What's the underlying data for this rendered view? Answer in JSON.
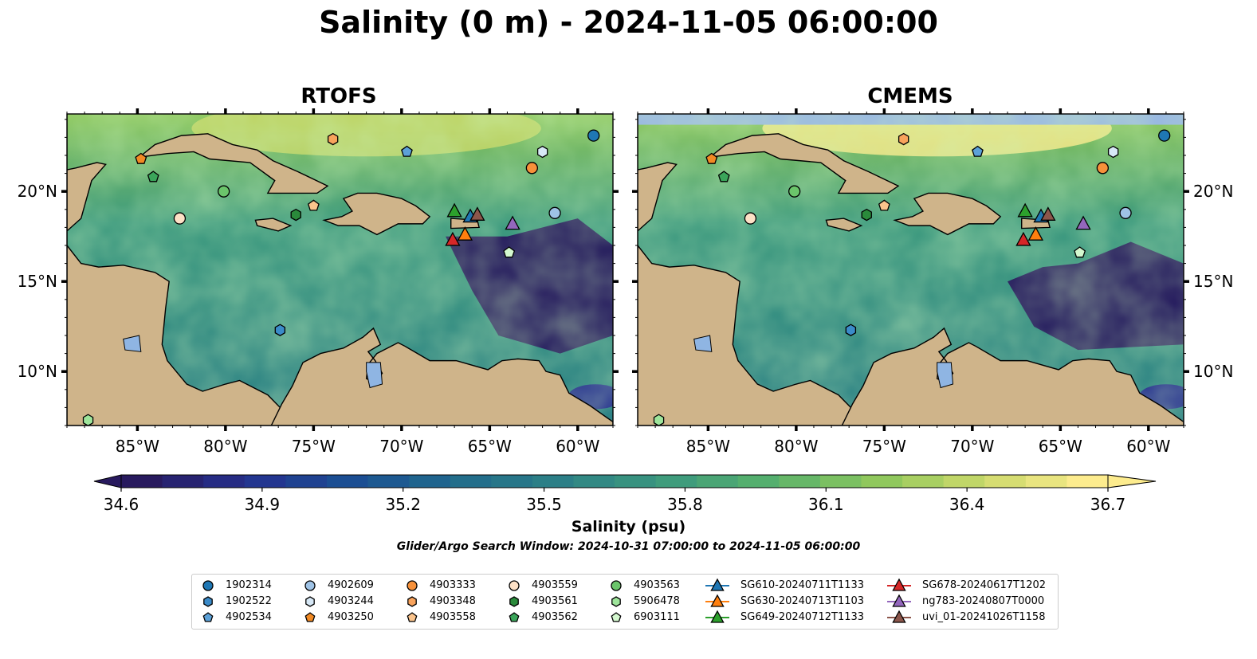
{
  "figure": {
    "title": "Salinity (0 m) - 2024-11-05 06:00:00",
    "caption": "Glider/Argo Search Window: 2024-10-31 07:00:00 to 2024-11-05 06:00:00"
  },
  "chart_data": {
    "type": "heatmap",
    "panels": [
      {
        "title": "RTOFS"
      },
      {
        "title": "CMEMS"
      }
    ],
    "x_ticks": [
      "85°W",
      "80°W",
      "75°W",
      "70°W",
      "65°W",
      "60°W"
    ],
    "x_tick_values": [
      -85,
      -80,
      -75,
      -70,
      -65,
      -60
    ],
    "y_ticks": [
      "20°N",
      "15°N",
      "10°N"
    ],
    "y_tick_values": [
      20,
      15,
      10
    ],
    "xlim": [
      -89,
      -58
    ],
    "ylim": [
      7,
      24.3
    ],
    "colorbar": {
      "label": "Salinity (psu)",
      "ticks": [
        "34.6",
        "34.9",
        "35.2",
        "35.5",
        "35.8",
        "36.1",
        "36.4",
        "36.7"
      ],
      "tick_values": [
        34.6,
        34.9,
        35.2,
        35.5,
        35.8,
        36.1,
        36.4,
        36.7
      ],
      "range": [
        34.6,
        36.7
      ],
      "extend": "both",
      "colormap": [
        "#281a5e",
        "#25318f",
        "#1b4f93",
        "#216b8c",
        "#2d8186",
        "#3d9a7e",
        "#58b26c",
        "#8dc75c",
        "#cbd96a",
        "#fdec8e"
      ]
    },
    "floats": [
      {
        "name": "1902314",
        "lon": -59.1,
        "lat": 23.1,
        "marker": "circle",
        "color": "#1f77b4"
      },
      {
        "name": "1902522",
        "lon": -76.9,
        "lat": 12.3,
        "marker": "hexagon",
        "color": "#3b8bc9"
      },
      {
        "name": "4902534",
        "lon": -69.7,
        "lat": 22.2,
        "marker": "pentagon",
        "color": "#5ca1d8"
      },
      {
        "name": "4902609",
        "lon": -61.3,
        "lat": 18.8,
        "marker": "circle",
        "color": "#9fc3e6"
      },
      {
        "name": "4903244",
        "lon": -62.0,
        "lat": 22.2,
        "marker": "hexagon",
        "color": "#d7e8f6"
      },
      {
        "name": "4903250",
        "lon": -84.8,
        "lat": 21.8,
        "marker": "pentagon",
        "color": "#f28a24"
      },
      {
        "name": "4903333",
        "lon": -62.6,
        "lat": 21.3,
        "marker": "circle",
        "color": "#f7913a"
      },
      {
        "name": "4903348",
        "lon": -73.9,
        "lat": 22.9,
        "marker": "hexagon",
        "color": "#f9a35c"
      },
      {
        "name": "4903558",
        "lon": -75.0,
        "lat": 19.2,
        "marker": "pentagon",
        "color": "#fbc48c"
      },
      {
        "name": "4903559",
        "lon": -82.6,
        "lat": 18.5,
        "marker": "circle",
        "color": "#fde1c6"
      },
      {
        "name": "4903561",
        "lon": -76.0,
        "lat": 18.7,
        "marker": "hexagon",
        "color": "#2a8a3b"
      },
      {
        "name": "4903562",
        "lon": -84.1,
        "lat": 20.8,
        "marker": "pentagon",
        "color": "#3ba55a"
      },
      {
        "name": "4903563",
        "lon": -80.1,
        "lat": 20.0,
        "marker": "circle",
        "color": "#6bc56b"
      },
      {
        "name": "5906478",
        "lon": -87.8,
        "lat": 7.3,
        "marker": "hexagon",
        "color": "#9ee59b"
      },
      {
        "name": "6903111",
        "lon": -63.9,
        "lat": 16.6,
        "marker": "pentagon",
        "color": "#d4f8cf"
      }
    ],
    "gliders": [
      {
        "name": "SG610-20240711T1133",
        "lon": -66.1,
        "lat": 18.6,
        "color": "#1f77b4"
      },
      {
        "name": "SG630-20240713T1103",
        "lon": -66.4,
        "lat": 17.6,
        "color": "#ff7f0e"
      },
      {
        "name": "SG649-20240712T1133",
        "lon": -67.0,
        "lat": 18.9,
        "color": "#2ca02c"
      },
      {
        "name": "SG678-20240617T1202",
        "lon": -67.1,
        "lat": 17.3,
        "color": "#d62728"
      },
      {
        "name": "ng783-20240807T0000",
        "lon": -63.7,
        "lat": 18.2,
        "color": "#9467bd"
      },
      {
        "name": "uvi_01-20241026T1158",
        "lon": -65.7,
        "lat": 18.7,
        "color": "#8c564b"
      }
    ],
    "legend_placement": "bottom-center"
  }
}
